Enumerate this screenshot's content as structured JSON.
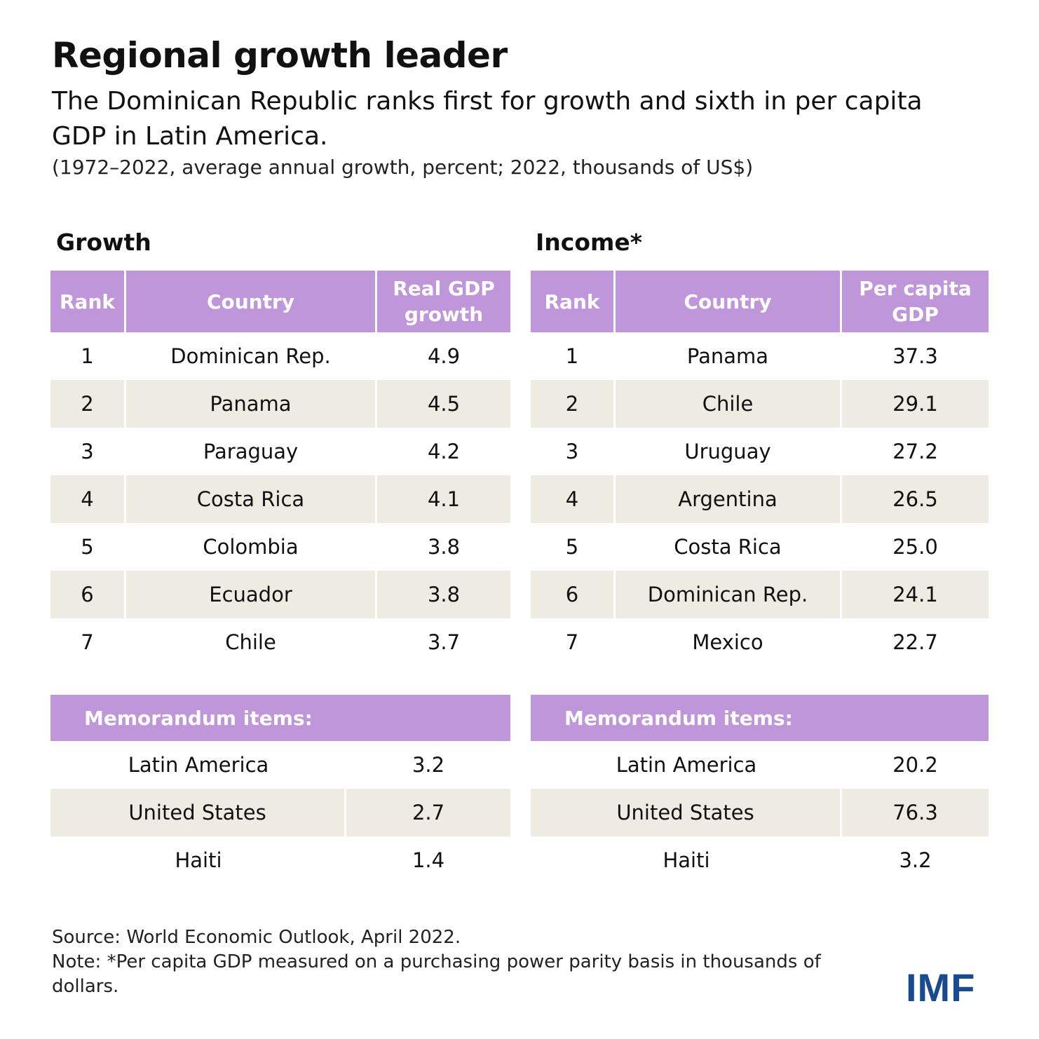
{
  "title": "Regional growth leader",
  "subtitle": "The Dominican Republic ranks first for growth and sixth in per capita GDP in Latin America.",
  "units": "(1972–2022, average annual growth, percent; 2022, thousands of US$)",
  "colors": {
    "header": "#BF96DA",
    "stripe": "#EEEBE3",
    "logo": "#1A4B8E"
  },
  "growth": {
    "label": "Growth",
    "headers": [
      "Rank",
      "Country",
      "Real GDP growth"
    ],
    "rows": [
      {
        "rank": "1",
        "country": "Dominican Rep.",
        "value": "4.9"
      },
      {
        "rank": "2",
        "country": "Panama",
        "value": "4.5"
      },
      {
        "rank": "3",
        "country": "Paraguay",
        "value": "4.2"
      },
      {
        "rank": "4",
        "country": "Costa Rica",
        "value": "4.1"
      },
      {
        "rank": "5",
        "country": "Colombia",
        "value": "3.8"
      },
      {
        "rank": "6",
        "country": "Ecuador",
        "value": "3.8"
      },
      {
        "rank": "7",
        "country": "Chile",
        "value": "3.7"
      }
    ],
    "memo_label": "Memorandum items:",
    "memo_rows": [
      {
        "country": "Latin America",
        "value": "3.2"
      },
      {
        "country": "United States",
        "value": "2.7"
      },
      {
        "country": "Haiti",
        "value": "1.4"
      }
    ]
  },
  "income": {
    "label": "Income*",
    "headers": [
      "Rank",
      "Country",
      "Per capita GDP"
    ],
    "rows": [
      {
        "rank": "1",
        "country": "Panama",
        "value": "37.3"
      },
      {
        "rank": "2",
        "country": "Chile",
        "value": "29.1"
      },
      {
        "rank": "3",
        "country": "Uruguay",
        "value": "27.2"
      },
      {
        "rank": "4",
        "country": "Argentina",
        "value": "26.5"
      },
      {
        "rank": "5",
        "country": "Costa Rica",
        "value": "25.0"
      },
      {
        "rank": "6",
        "country": "Dominican Rep.",
        "value": "24.1"
      },
      {
        "rank": "7",
        "country": "Mexico",
        "value": "22.7"
      }
    ],
    "memo_label": "Memorandum items:",
    "memo_rows": [
      {
        "country": "Latin America",
        "value": "20.2"
      },
      {
        "country": "United States",
        "value": "76.3"
      },
      {
        "country": "Haiti",
        "value": "3.2"
      }
    ]
  },
  "footer": {
    "source": "Source: World Economic Outlook, April 2022.",
    "note": "Note: *Per capita GDP measured on a purchasing power parity basis in thousands of dollars."
  },
  "logo": "IMF"
}
